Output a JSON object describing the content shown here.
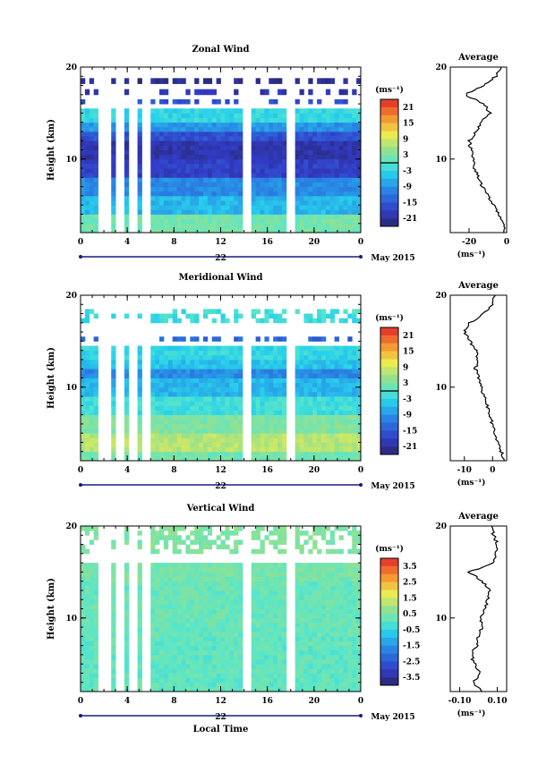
{
  "chart_data": [
    {
      "type": "heatmap",
      "title": "Zonal Wind",
      "ylabel": "Height (km)",
      "xlabel": "",
      "x_ticks": [
        "0",
        "4",
        "8",
        "12",
        "16",
        "20",
        "0"
      ],
      "y_ticks": [
        "10",
        "20"
      ],
      "date_label": "22",
      "month_label": "May 2015",
      "xlim": [
        0,
        24
      ],
      "ylim": [
        2,
        20
      ],
      "colorbar": {
        "unit": "(ms⁻¹)",
        "ticks": [
          "21",
          "15",
          "9",
          "3",
          "-3",
          "-9",
          "-15",
          "-21"
        ],
        "range": [
          -24,
          24
        ],
        "contour": 0
      },
      "field": {
        "layers": [
          {
            "h": [
              2,
              4
            ],
            "v": 2
          },
          {
            "h": [
              4,
              6
            ],
            "v": -6
          },
          {
            "h": [
              6,
              8
            ],
            "v": -10
          },
          {
            "h": [
              8,
              10
            ],
            "v": -18
          },
          {
            "h": [
              10,
              12
            ],
            "v": -20
          },
          {
            "h": [
              12,
              13
            ],
            "v": -16
          },
          {
            "h": [
              13,
              14
            ],
            "v": -9
          },
          {
            "h": [
              14,
              15.5
            ],
            "v": -3
          },
          {
            "h": [
              16,
              16.5
            ],
            "v": -16
          },
          {
            "h": [
              17,
              17.6
            ],
            "v": -20
          },
          {
            "h": [
              18.2,
              18.8
            ],
            "v": -22
          }
        ],
        "gaps_hours": [
          [
            1.5,
            2.3
          ],
          [
            3.2,
            3.6
          ],
          [
            4.2,
            4.8
          ],
          [
            5.3,
            5.9
          ],
          [
            14.0,
            14.6
          ],
          [
            17.8,
            18.3
          ]
        ]
      },
      "profile": {
        "title": "Average",
        "xlabel": "(ms⁻¹)",
        "x_ticks": [
          "-20",
          "0"
        ],
        "xlim": [
          -30,
          0
        ],
        "heights": [
          2,
          3,
          4,
          5,
          6,
          7,
          8,
          9,
          10,
          11,
          12,
          13,
          14,
          15,
          16,
          17,
          18,
          19,
          20
        ],
        "values": [
          -1,
          -2,
          -4,
          -7,
          -10,
          -13,
          -15,
          -17,
          -18,
          -19,
          -20,
          -16,
          -14,
          -9,
          -12,
          -22,
          -12,
          -6,
          -3
        ]
      }
    },
    {
      "type": "heatmap",
      "title": "Meridional Wind",
      "ylabel": "Height (km)",
      "xlabel": "",
      "x_ticks": [
        "0",
        "4",
        "8",
        "12",
        "16",
        "20",
        "0"
      ],
      "y_ticks": [
        "10",
        "20"
      ],
      "date_label": "22",
      "month_label": "May 2015",
      "xlim": [
        0,
        24
      ],
      "ylim": [
        2,
        20
      ],
      "colorbar": {
        "unit": "(ms⁻¹)",
        "ticks": [
          "21",
          "15",
          "9",
          "3",
          "-3",
          "-9",
          "-15",
          "-21"
        ],
        "range": [
          -24,
          24
        ],
        "contour": 0
      },
      "field": {
        "layers": [
          {
            "h": [
              2,
              3
            ],
            "v": 2
          },
          {
            "h": [
              3,
              5
            ],
            "v": 7
          },
          {
            "h": [
              5,
              7
            ],
            "v": 3
          },
          {
            "h": [
              7,
              9
            ],
            "v": -2
          },
          {
            "h": [
              9,
              11
            ],
            "v": -6
          },
          {
            "h": [
              11,
              12
            ],
            "v": -10
          },
          {
            "h": [
              12,
              13
            ],
            "v": -5
          },
          {
            "h": [
              13,
              14.5
            ],
            "v": -3
          },
          {
            "h": [
              15,
              15.5
            ],
            "v": -14
          },
          {
            "h": [
              17,
              18.5
            ],
            "v": -2
          }
        ],
        "gaps_hours": [
          [
            1.5,
            2.3
          ],
          [
            3.2,
            3.6
          ],
          [
            4.2,
            4.8
          ],
          [
            5.3,
            5.9
          ],
          [
            14.0,
            14.6
          ],
          [
            17.8,
            18.3
          ]
        ]
      },
      "profile": {
        "title": "Average",
        "xlabel": "(ms⁻¹)",
        "x_ticks": [
          "-10",
          "0"
        ],
        "xlim": [
          -15,
          5
        ],
        "heights": [
          2,
          3,
          4,
          5,
          6,
          7,
          8,
          9,
          10,
          11,
          12,
          13,
          14,
          15,
          16,
          17,
          18,
          19,
          20
        ],
        "values": [
          4,
          3,
          2,
          1,
          0,
          -1,
          -2,
          -3,
          -4,
          -5,
          -6,
          -5,
          -6,
          -8,
          -10,
          -8,
          -3,
          0,
          1
        ]
      }
    },
    {
      "type": "heatmap",
      "title": "Vertical Wind",
      "ylabel": "Height (km)",
      "xlabel": "Local Time",
      "x_ticks": [
        "0",
        "4",
        "8",
        "12",
        "16",
        "20",
        "0"
      ],
      "y_ticks": [
        "10",
        "20"
      ],
      "date_label": "22",
      "month_label": "May 2015",
      "xlim": [
        0,
        24
      ],
      "ylim": [
        2,
        20
      ],
      "colorbar": {
        "unit": "(ms⁻¹)",
        "ticks": [
          "3.5",
          "2.5",
          "1.5",
          "0.5",
          "-0.5",
          "-1.5",
          "-2.5",
          "-3.5"
        ],
        "range": [
          -4,
          4
        ],
        "contour": null
      },
      "field": {
        "layers": [
          {
            "h": [
              2,
              8
            ],
            "v": 0.1
          },
          {
            "h": [
              8,
              14
            ],
            "v": 0.2
          },
          {
            "h": [
              14,
              16
            ],
            "v": 0.4
          },
          {
            "h": [
              17,
              20
            ],
            "v": 0.5
          }
        ],
        "gaps_hours": [
          [
            1.5,
            2.3
          ],
          [
            3.2,
            3.6
          ],
          [
            4.2,
            4.8
          ],
          [
            5.3,
            5.9
          ],
          [
            14.0,
            14.6
          ],
          [
            17.8,
            18.3
          ]
        ]
      },
      "profile": {
        "title": "Average",
        "xlabel": "(ms⁻¹)",
        "x_ticks": [
          "-0.10",
          "0.10"
        ],
        "xlim": [
          -0.15,
          0.15
        ],
        "heights": [
          2,
          3,
          4,
          5,
          6,
          7,
          8,
          9,
          10,
          11,
          12,
          13,
          14,
          15,
          16,
          17,
          18,
          19,
          20
        ],
        "values": [
          0.02,
          -0.03,
          0.01,
          -0.02,
          -0.04,
          -0.01,
          0.0,
          0.02,
          0.01,
          0.03,
          0.05,
          0.06,
          0.02,
          -0.05,
          0.08,
          0.09,
          0.1,
          0.08,
          0.07
        ]
      }
    }
  ]
}
